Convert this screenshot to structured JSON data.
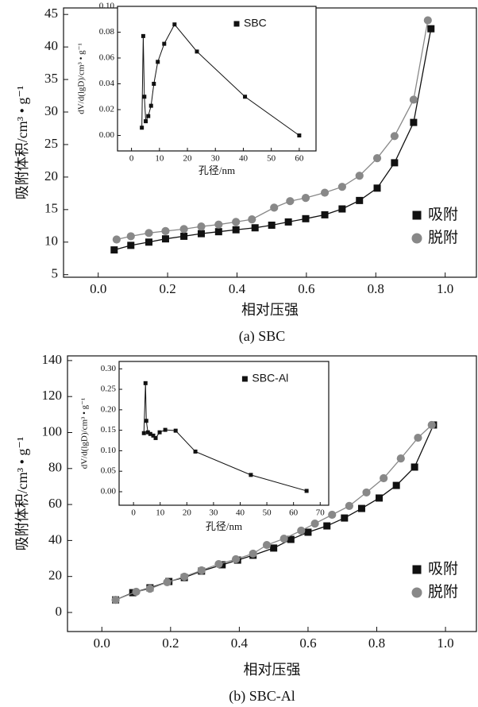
{
  "chart_data": [
    {
      "type": "line",
      "caption": "(a) SBC",
      "xlabel": "相对压强",
      "ylabel": "吸附体积/cm³ • g⁻¹",
      "x": [
        0.046,
        0.094,
        0.146,
        0.194,
        0.247,
        0.297,
        0.347,
        0.397,
        0.452,
        0.5,
        0.548,
        0.598,
        0.653,
        0.703,
        0.753,
        0.804,
        0.854,
        0.909,
        0.959
      ],
      "series": [
        {
          "name": "吸附",
          "color": "#111111",
          "marker": "square",
          "values": [
            8.8,
            9.5,
            10.0,
            10.5,
            10.9,
            11.3,
            11.6,
            11.9,
            12.2,
            12.6,
            13.1,
            13.6,
            14.2,
            15.1,
            16.4,
            18.3,
            22.2,
            28.4,
            42.8
          ]
        },
        {
          "name": "脱附",
          "color": "#888888",
          "marker": "circle",
          "x": [
            0.053,
            0.094,
            0.146,
            0.194,
            0.247,
            0.297,
            0.347,
            0.397,
            0.443,
            0.507,
            0.553,
            0.598,
            0.653,
            0.703,
            0.753,
            0.804,
            0.854,
            0.909,
            0.95
          ],
          "values": [
            10.4,
            10.9,
            11.4,
            11.7,
            12.0,
            12.4,
            12.7,
            13.1,
            13.5,
            15.3,
            16.3,
            16.8,
            17.6,
            18.5,
            20.2,
            22.9,
            26.3,
            31.9,
            44.1
          ]
        }
      ],
      "xlim": [
        -0.1,
        1.09
      ],
      "ylim": [
        4.6,
        46
      ],
      "xticks": [
        {
          "value": 0,
          "label": "0.0"
        },
        0.2,
        0.4,
        0.6,
        0.8,
        {
          "value": 1,
          "label": "1.0"
        }
      ],
      "yticks": [
        5,
        10,
        15,
        20,
        25,
        30,
        35,
        40,
        45
      ],
      "legend": "lower right"
    },
    {
      "type": "line",
      "xlabel": "孔径/nm",
      "ylabel": "dV/d(lgD)/cm³ • g⁻¹",
      "x": [
        3.7,
        4.2,
        4.6,
        5.1,
        6,
        7,
        8,
        9.4,
        11.7,
        15.4,
        23.4,
        40.6,
        60
      ],
      "series": [
        {
          "name": "SBC",
          "color": "#111111",
          "marker": "square",
          "values": [
            0.006,
            0.077,
            0.03,
            0.011,
            0.015,
            0.023,
            0.04,
            0.057,
            0.071,
            0.086,
            0.065,
            0.03,
            0.0
          ]
        }
      ],
      "xlim": [
        -5,
        66
      ],
      "ylim": [
        -0.012,
        0.1
      ],
      "xticks": [
        0,
        10,
        20,
        30,
        40,
        50,
        60
      ],
      "yticks": [
        {
          "value": 0,
          "label": "0.00"
        },
        0.02,
        0.04,
        0.06,
        0.08,
        {
          "value": 0.1,
          "label": "0.10"
        }
      ],
      "legend": "upper right"
    },
    {
      "type": "line",
      "caption": "(b) SBC-Al",
      "xlabel": "相对压强",
      "ylabel": "吸附体积/cm³ • g⁻¹",
      "x": [
        0.04,
        0.09,
        0.14,
        0.195,
        0.24,
        0.29,
        0.35,
        0.395,
        0.44,
        0.5,
        0.55,
        0.6,
        0.655,
        0.706,
        0.756,
        0.807,
        0.857,
        0.91,
        0.965
      ],
      "series": [
        {
          "name": "吸附",
          "color": "#111111",
          "marker": "square",
          "values": [
            7,
            11,
            13.7,
            17.2,
            19.4,
            23,
            26.5,
            29.1,
            31.8,
            35.8,
            40.6,
            44.6,
            48.1,
            52.5,
            57.8,
            63.6,
            70.6,
            80.8,
            104.2
          ]
        },
        {
          "name": "脱附",
          "color": "#888888",
          "marker": "circle",
          "x": [
            0.04,
            0.1,
            0.14,
            0.19,
            0.24,
            0.29,
            0.34,
            0.39,
            0.44,
            0.48,
            0.53,
            0.58,
            0.62,
            0.67,
            0.72,
            0.77,
            0.82,
            0.87,
            0.92,
            0.96
          ],
          "values": [
            7,
            11.5,
            13.2,
            16.8,
            19.9,
            23.4,
            26.9,
            29.6,
            32.7,
            37.5,
            41,
            45.5,
            49.4,
            54.3,
            59.2,
            66.7,
            74.6,
            85.6,
            97.1,
            104.2
          ]
        }
      ],
      "xlim": [
        -0.1,
        1.09
      ],
      "ylim": [
        -10.6,
        142.6
      ],
      "xticks": [
        {
          "value": 0,
          "label": "0.0"
        },
        0.2,
        0.4,
        0.6,
        0.8,
        {
          "value": 1,
          "label": "1.0"
        }
      ],
      "yticks": [
        0,
        20,
        40,
        60,
        80,
        100,
        120,
        140
      ],
      "legend": "lower right"
    },
    {
      "type": "line",
      "xlabel": "孔径/nm",
      "ylabel": "dV/d(lgD)/cm³ • g⁻¹",
      "x": [
        3.9,
        4.5,
        4.8,
        5.4,
        6.3,
        7.4,
        8.3,
        9.8,
        11.9,
        15.8,
        23.2,
        44,
        64.9
      ],
      "series": [
        {
          "name": "SBC-Al",
          "color": "#111111",
          "marker": "square",
          "values": [
            0.143,
            0.265,
            0.173,
            0.145,
            0.141,
            0.137,
            0.131,
            0.145,
            0.151,
            0.149,
            0.098,
            0.041,
            0.002
          ]
        }
      ],
      "xlim": [
        -5.4,
        73.2
      ],
      "ylim": [
        -0.033,
        0.318
      ],
      "xticks": [
        0,
        10,
        20,
        30,
        40,
        50,
        60,
        70
      ],
      "yticks": [
        {
          "value": 0,
          "label": "0.00"
        },
        0.05,
        {
          "value": 0.1,
          "label": "0.10"
        },
        0.15,
        {
          "value": 0.2,
          "label": "0.20"
        },
        0.25,
        {
          "value": 0.3,
          "label": "0.30"
        }
      ],
      "legend": "upper right"
    }
  ]
}
